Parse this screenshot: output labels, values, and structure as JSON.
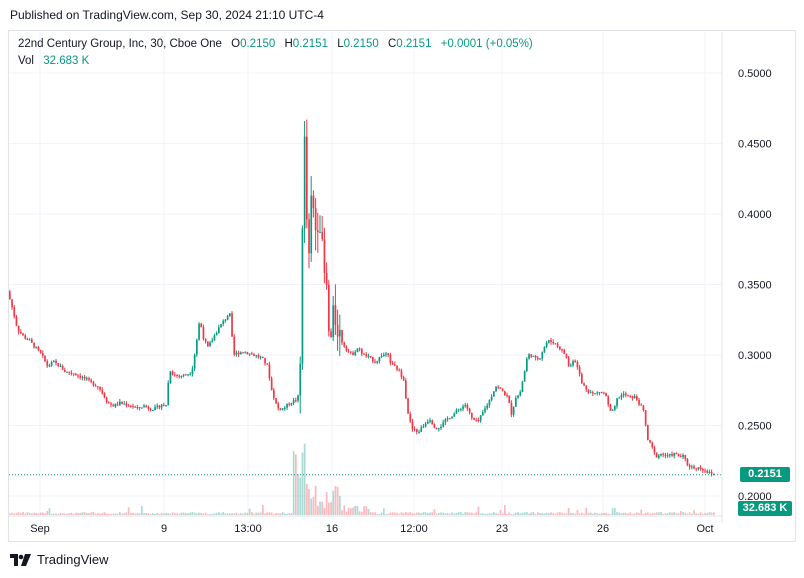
{
  "header": {
    "published_text": "Published on TradingView.com, Sep 30, 2024 21:10 UTC-4"
  },
  "legend": {
    "symbol": "22nd Century Group, Inc, 30, Cboe One",
    "open_label": "O",
    "open_value": "0.2150",
    "high_label": "H",
    "high_value": "0.2151",
    "low_label": "L",
    "low_value": "0.2150",
    "close_label": "C",
    "close_value": "0.2151",
    "change": "+0.0001 (+0.05%)",
    "volume_label": "Vol",
    "volume_value": "32.683 K"
  },
  "price_tag": {
    "price": "0.2151",
    "volume": "32.683 K"
  },
  "footer": {
    "brand": "TradingView"
  },
  "colors": {
    "up": "#089981",
    "down": "#f23645",
    "grid": "#f0f3fa",
    "axis_text": "#131722",
    "last_line": "#089981"
  },
  "chart_data": {
    "type": "candlestick",
    "title": "22nd Century Group, Inc, 30, Cboe One",
    "y_ticks": [
      "0.5000",
      "0.4500",
      "0.4000",
      "0.3500",
      "0.3000",
      "0.2500",
      "0.2000"
    ],
    "x_ticks": [
      "Sep",
      "9",
      "13:00",
      "16",
      "12:00",
      "23",
      "26",
      "Oct"
    ],
    "ylim": [
      0.19,
      0.51
    ],
    "last_price": 0.2151,
    "price_path": [
      [
        0,
        0.345
      ],
      [
        4,
        0.335
      ],
      [
        10,
        0.318
      ],
      [
        16,
        0.313
      ],
      [
        22,
        0.31
      ],
      [
        28,
        0.305
      ],
      [
        34,
        0.3
      ],
      [
        40,
        0.292
      ],
      [
        46,
        0.295
      ],
      [
        52,
        0.292
      ],
      [
        58,
        0.288
      ],
      [
        66,
        0.287
      ],
      [
        72,
        0.285
      ],
      [
        78,
        0.283
      ],
      [
        84,
        0.28
      ],
      [
        90,
        0.278
      ],
      [
        96,
        0.272
      ],
      [
        100,
        0.266
      ],
      [
        106,
        0.264
      ],
      [
        112,
        0.266
      ],
      [
        118,
        0.265
      ],
      [
        124,
        0.264
      ],
      [
        130,
        0.262
      ],
      [
        136,
        0.264
      ],
      [
        142,
        0.262
      ],
      [
        148,
        0.262
      ],
      [
        154,
        0.265
      ],
      [
        158,
        0.262
      ],
      [
        162,
        0.29
      ],
      [
        166,
        0.286
      ],
      [
        172,
        0.285
      ],
      [
        178,
        0.286
      ],
      [
        184,
        0.288
      ],
      [
        188,
        0.305
      ],
      [
        192,
        0.325
      ],
      [
        196,
        0.312
      ],
      [
        200,
        0.305
      ],
      [
        204,
        0.31
      ],
      [
        210,
        0.318
      ],
      [
        216,
        0.324
      ],
      [
        222,
        0.33
      ],
      [
        226,
        0.3
      ],
      [
        232,
        0.302
      ],
      [
        238,
        0.302
      ],
      [
        246,
        0.3
      ],
      [
        254,
        0.298
      ],
      [
        260,
        0.292
      ],
      [
        264,
        0.275
      ],
      [
        270,
        0.262
      ],
      [
        276,
        0.262
      ],
      [
        282,
        0.266
      ],
      [
        288,
        0.268
      ],
      [
        292,
        0.272
      ],
      [
        294,
        0.34
      ],
      [
        296,
        0.48
      ],
      [
        298,
        0.42
      ],
      [
        300,
        0.38
      ],
      [
        302,
        0.36
      ],
      [
        304,
        0.42
      ],
      [
        306,
        0.4
      ],
      [
        308,
        0.39
      ],
      [
        312,
        0.4
      ],
      [
        314,
        0.38
      ],
      [
        316,
        0.36
      ],
      [
        320,
        0.34
      ],
      [
        322,
        0.3
      ],
      [
        326,
        0.33
      ],
      [
        330,
        0.32
      ],
      [
        334,
        0.31
      ],
      [
        338,
        0.305
      ],
      [
        344,
        0.3
      ],
      [
        350,
        0.305
      ],
      [
        356,
        0.3
      ],
      [
        362,
        0.298
      ],
      [
        368,
        0.295
      ],
      [
        374,
        0.3
      ],
      [
        380,
        0.3
      ],
      [
        384,
        0.293
      ],
      [
        390,
        0.29
      ],
      [
        396,
        0.283
      ],
      [
        400,
        0.26
      ],
      [
        404,
        0.248
      ],
      [
        410,
        0.245
      ],
      [
        416,
        0.25
      ],
      [
        422,
        0.255
      ],
      [
        428,
        0.248
      ],
      [
        434,
        0.25
      ],
      [
        440,
        0.255
      ],
      [
        446,
        0.258
      ],
      [
        452,
        0.262
      ],
      [
        458,
        0.265
      ],
      [
        464,
        0.255
      ],
      [
        470,
        0.252
      ],
      [
        476,
        0.26
      ],
      [
        482,
        0.268
      ],
      [
        488,
        0.278
      ],
      [
        494,
        0.275
      ],
      [
        500,
        0.27
      ],
      [
        504,
        0.258
      ],
      [
        508,
        0.27
      ],
      [
        512,
        0.272
      ],
      [
        516,
        0.285
      ],
      [
        520,
        0.3
      ],
      [
        524,
        0.3
      ],
      [
        528,
        0.297
      ],
      [
        532,
        0.298
      ],
      [
        536,
        0.305
      ],
      [
        540,
        0.31
      ],
      [
        546,
        0.309
      ],
      [
        552,
        0.305
      ],
      [
        558,
        0.3
      ],
      [
        562,
        0.29
      ],
      [
        566,
        0.298
      ],
      [
        570,
        0.292
      ],
      [
        574,
        0.28
      ],
      [
        580,
        0.275
      ],
      [
        586,
        0.272
      ],
      [
        592,
        0.274
      ],
      [
        598,
        0.272
      ],
      [
        602,
        0.26
      ],
      [
        606,
        0.26
      ],
      [
        610,
        0.27
      ],
      [
        616,
        0.272
      ],
      [
        622,
        0.27
      ],
      [
        628,
        0.27
      ],
      [
        632,
        0.265
      ],
      [
        636,
        0.26
      ],
      [
        640,
        0.24
      ],
      [
        644,
        0.235
      ],
      [
        648,
        0.228
      ],
      [
        654,
        0.23
      ],
      [
        660,
        0.228
      ],
      [
        666,
        0.23
      ],
      [
        672,
        0.228
      ],
      [
        676,
        0.228
      ],
      [
        680,
        0.222
      ],
      [
        686,
        0.22
      ],
      [
        692,
        0.22
      ],
      [
        698,
        0.218
      ],
      [
        702,
        0.216
      ],
      [
        706,
        0.215
      ]
    ]
  }
}
